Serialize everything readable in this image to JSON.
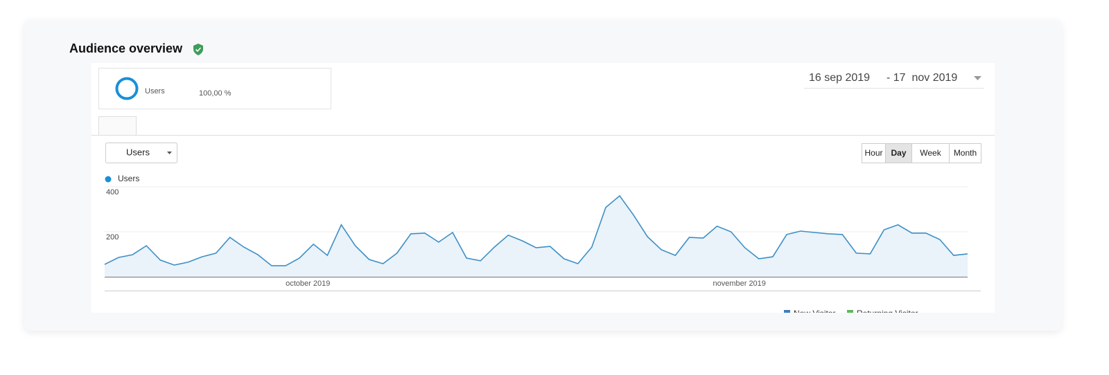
{
  "header": {
    "title": "Audience overview"
  },
  "summary": {
    "metric": "Users",
    "percent": "100,00 %"
  },
  "date_range": {
    "start": "16 sep 2019",
    "end": "- 17  nov 2019"
  },
  "metric_selector": "Users",
  "granularity": [
    "Hour",
    "Day",
    "Week",
    "Month"
  ],
  "selected_granularity": 1,
  "visitor_legend": [
    "New Visitor",
    "Returning Visitor"
  ],
  "chart_data": {
    "type": "line",
    "series": [
      {
        "name": "Users",
        "color": "#3d8fc6",
        "values": [
          55,
          86,
          98,
          138,
          74,
          52,
          65,
          89,
          105,
          175,
          132,
          98,
          49,
          49,
          83,
          145,
          95,
          231,
          138,
          77,
          58,
          105,
          191,
          194,
          154,
          197,
          83,
          71,
          132,
          185,
          160,
          129,
          135,
          80,
          58,
          132,
          308,
          360,
          274,
          178,
          120,
          95,
          175,
          172,
          225,
          200,
          129,
          80,
          89,
          188,
          203,
          197,
          191,
          188,
          105,
          102,
          209,
          231,
          194,
          194,
          166,
          95,
          102
        ]
      }
    ],
    "categories": [
      null,
      null,
      null,
      null,
      null,
      null,
      null,
      null,
      null,
      null,
      null,
      null,
      null,
      null,
      null,
      "october 2019",
      null,
      null,
      null,
      null,
      null,
      null,
      null,
      null,
      null,
      null,
      null,
      null,
      null,
      null,
      null,
      null,
      null,
      null,
      null,
      null,
      null,
      null,
      null,
      null,
      null,
      null,
      null,
      null,
      null,
      null,
      "november 2019",
      null,
      null,
      null,
      null,
      null,
      null,
      null,
      null,
      null,
      null,
      null,
      null,
      null,
      null,
      null,
      null
    ],
    "ylim": [
      0,
      400
    ],
    "yticks": [
      200,
      400
    ],
    "grid": true
  }
}
